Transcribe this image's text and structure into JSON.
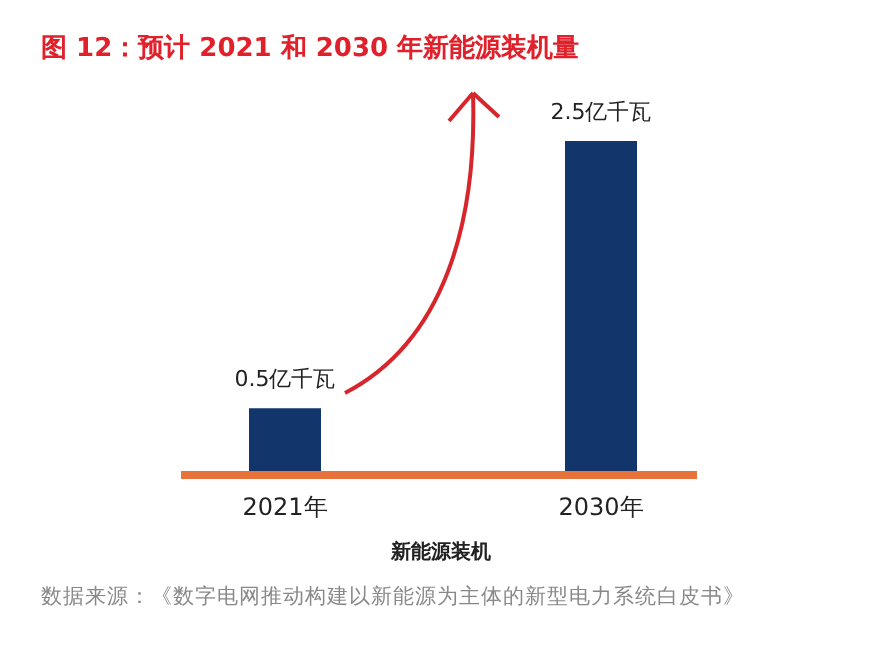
{
  "chart_data": {
    "type": "bar",
    "title": "图 12：预计 2021 和 2030 年新能源装机量",
    "ylim": [
      -1.4521,
      3.5479
    ],
    "categories": [
      "2021年",
      "2030年"
    ],
    "values": [
      0.5,
      2.5
    ],
    "value_labels": [
      "0.5亿千瓦",
      "2.5亿千瓦"
    ],
    "color": "#12366b",
    "xlabel": "新能源装机",
    "annotations": [
      "数据来源：《数字电网推动构建以新能源为主体的新型电力系统白皮书》"
    ]
  }
}
